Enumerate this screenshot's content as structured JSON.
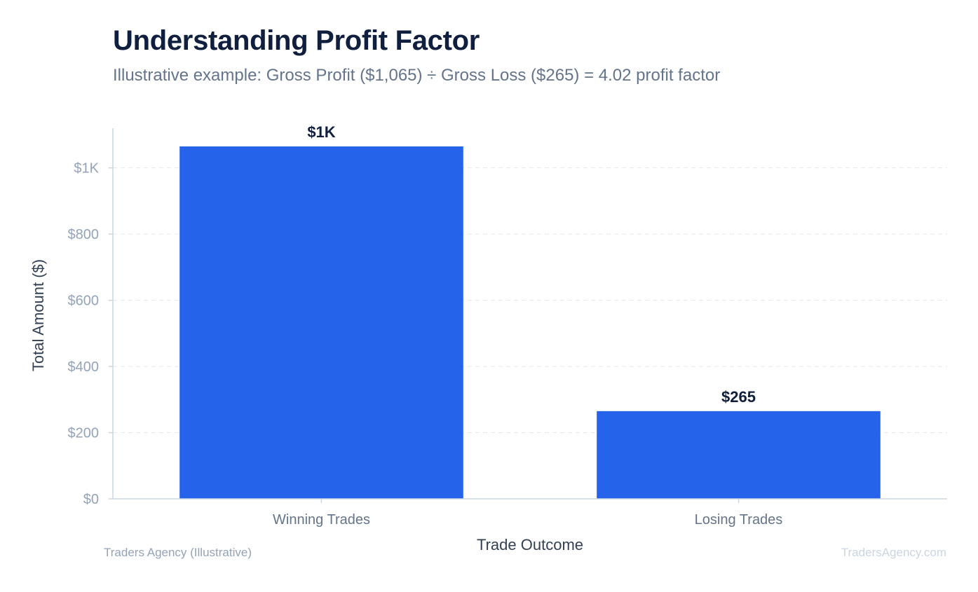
{
  "chart_data": {
    "type": "bar",
    "title": "Understanding Profit Factor",
    "subtitle": "Illustrative example: Gross Profit ($1,065) ÷ Gross Loss ($265) = 4.02 profit factor",
    "categories": [
      "Winning Trades",
      "Losing Trades"
    ],
    "values": [
      1065,
      265
    ],
    "value_labels": [
      "$1K",
      "$265"
    ],
    "xlabel": "Trade Outcome",
    "ylabel": "Total Amount ($)",
    "ylim": [
      0,
      1120
    ],
    "yticks": [
      0,
      200,
      400,
      600,
      800,
      1000
    ],
    "ytick_labels": [
      "$0",
      "$200",
      "$400",
      "$600",
      "$800",
      "$1K"
    ],
    "grid": true,
    "bar_color": "#2563eb"
  },
  "footer": {
    "source": "Traders Agency (Illustrative)",
    "watermark": "TradersAgency.com"
  }
}
